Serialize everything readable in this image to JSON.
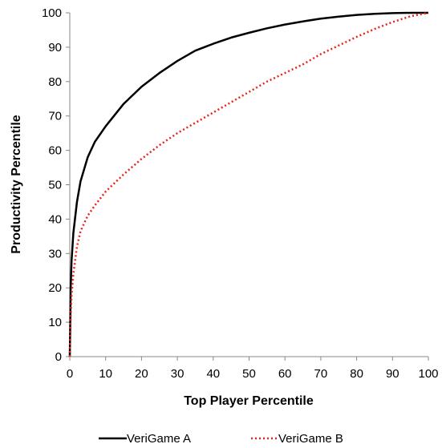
{
  "chart_data": {
    "type": "line",
    "title": "",
    "xlabel": "Top Player Percentile",
    "ylabel": "Productivity Percentile",
    "xlim": [
      0,
      100
    ],
    "ylim": [
      0,
      100
    ],
    "x_ticks": [
      "0",
      "10",
      "20",
      "30",
      "40",
      "50",
      "60",
      "70",
      "80",
      "90",
      "100"
    ],
    "y_ticks": [
      "0",
      "10",
      "20",
      "30",
      "40",
      "50",
      "60",
      "70",
      "80",
      "90",
      "100"
    ],
    "grid": false,
    "legend_position": "bottom",
    "series": [
      {
        "name": "VeriGame A",
        "color": "#000000",
        "style": "solid",
        "x": [
          0,
          0.25,
          0.5,
          1,
          2,
          3,
          5,
          7,
          10,
          15,
          20,
          25,
          30,
          35,
          40,
          45,
          50,
          55,
          60,
          65,
          70,
          75,
          80,
          85,
          90,
          95,
          100
        ],
        "y": [
          0,
          20,
          28,
          36,
          45,
          51,
          58,
          62.5,
          67,
          73.5,
          78.5,
          82.5,
          86,
          89,
          91,
          92.8,
          94.2,
          95.5,
          96.6,
          97.5,
          98.3,
          98.9,
          99.4,
          99.7,
          99.9,
          100,
          100
        ]
      },
      {
        "name": "VeriGame B",
        "color": "#e8241b",
        "style": "dotted",
        "x": [
          0,
          0.25,
          0.5,
          1,
          2,
          3,
          5,
          7,
          10,
          15,
          20,
          25,
          30,
          35,
          40,
          45,
          50,
          55,
          60,
          65,
          70,
          75,
          80,
          85,
          90,
          95,
          100
        ],
        "y": [
          0,
          12,
          18,
          24,
          32,
          36.5,
          41,
          44,
          48,
          53,
          57.5,
          61.5,
          65,
          68,
          71,
          74,
          77,
          80,
          82.5,
          85,
          88,
          90.5,
          93,
          95.3,
          97.3,
          99,
          100
        ]
      }
    ]
  }
}
